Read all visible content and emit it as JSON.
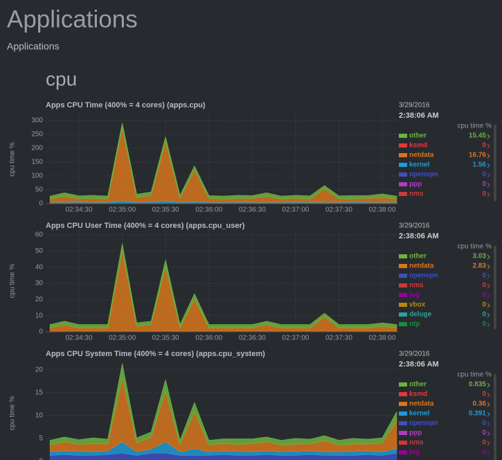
{
  "header": {
    "title": "Applications",
    "subtitle": "Applications",
    "section": "cpu"
  },
  "chart_data": [
    {
      "type": "area",
      "stacked": true,
      "title": "Apps CPU Time (400% = 4 cores) (apps.cpu)",
      "ylabel": "cpu time %",
      "legend_date": "3/29/2016",
      "legend_time": "2:38:06 AM",
      "legend_title": "cpu time %",
      "x": [
        "02:34:10",
        "02:34:20",
        "02:34:30",
        "02:34:40",
        "02:34:50",
        "02:35:00",
        "02:35:10",
        "02:35:20",
        "02:35:30",
        "02:35:40",
        "02:35:50",
        "02:36:00",
        "02:36:10",
        "02:36:20",
        "02:36:30",
        "02:36:40",
        "02:36:50",
        "02:37:00",
        "02:37:10",
        "02:37:20",
        "02:37:30",
        "02:37:40",
        "02:37:50",
        "02:38:00",
        "02:38:10"
      ],
      "xlim": [
        "02:34:07",
        "02:38:11"
      ],
      "xticks": [
        "02:34:30",
        "02:35:00",
        "02:35:30",
        "02:36:00",
        "02:36:30",
        "02:37:00",
        "02:37:30",
        "02:38:00"
      ],
      "ylim": [
        0,
        320
      ],
      "yticks": [
        0,
        50,
        100,
        150,
        200,
        250,
        300
      ],
      "grid": true,
      "series": [
        {
          "name": "other",
          "color": "#6db33f",
          "current": 15.45,
          "values": [
            10,
            12,
            10,
            11,
            10,
            18,
            11,
            12,
            16,
            10,
            14,
            10,
            10,
            11,
            10,
            12,
            10,
            10,
            11,
            12,
            10,
            11,
            10,
            12,
            10
          ]
        },
        {
          "name": "ksmd",
          "color": "#e53935",
          "current": 0,
          "values": [
            0,
            0,
            0,
            0,
            0,
            0,
            0,
            0,
            0,
            0,
            0,
            0,
            0,
            0,
            0,
            0,
            0,
            0,
            0,
            0,
            0,
            0,
            0,
            0,
            0
          ]
        },
        {
          "name": "netdata",
          "color": "#d8761e",
          "current": 16.76,
          "values": [
            12,
            22,
            12,
            14,
            12,
            262,
            18,
            24,
            215,
            15,
            115,
            14,
            12,
            13,
            14,
            22,
            12,
            14,
            12,
            48,
            13,
            12,
            14,
            18,
            12
          ]
        },
        {
          "name": "kernel",
          "color": "#1e9ad6",
          "current": 1.56,
          "values": [
            3,
            3,
            4,
            3,
            3,
            8,
            3,
            4,
            7,
            3,
            5,
            3,
            3,
            4,
            3,
            3,
            3,
            4,
            3,
            3,
            3,
            4,
            3,
            3,
            3
          ]
        },
        {
          "name": "openvpn",
          "color": "#3f4fc0",
          "current": 0,
          "values": [
            1,
            1,
            1,
            1,
            1,
            2,
            1,
            1,
            2,
            1,
            1,
            1,
            1,
            1,
            1,
            1,
            1,
            1,
            1,
            1,
            1,
            1,
            1,
            1,
            1
          ]
        },
        {
          "name": "ppp",
          "color": "#b03cc0",
          "current": 0,
          "values": [
            0,
            0,
            0,
            0,
            0,
            0,
            0,
            0,
            0,
            0,
            0,
            0,
            0,
            0,
            0,
            0,
            0,
            0,
            0,
            0,
            0,
            0,
            0,
            0,
            0
          ]
        },
        {
          "name": "nms",
          "color": "#cc3a3a",
          "current": 0,
          "values": [
            1,
            1,
            1,
            1,
            1,
            1,
            1,
            1,
            1,
            1,
            1,
            1,
            1,
            1,
            1,
            1,
            1,
            1,
            1,
            1,
            1,
            1,
            1,
            1,
            1
          ]
        }
      ]
    },
    {
      "type": "area",
      "stacked": true,
      "title": "Apps CPU User Time (400% = 4 cores) (apps.cpu_user)",
      "ylabel": "cpu time %",
      "legend_date": "3/29/2016",
      "legend_time": "2:38:06 AM",
      "legend_title": "cpu time %",
      "x": [
        "02:34:10",
        "02:34:20",
        "02:34:30",
        "02:34:40",
        "02:34:50",
        "02:35:00",
        "02:35:10",
        "02:35:20",
        "02:35:30",
        "02:35:40",
        "02:35:50",
        "02:36:00",
        "02:36:10",
        "02:36:20",
        "02:36:30",
        "02:36:40",
        "02:36:50",
        "02:37:00",
        "02:37:10",
        "02:37:20",
        "02:37:30",
        "02:37:40",
        "02:37:50",
        "02:38:00",
        "02:38:10"
      ],
      "xlim": [
        "02:34:07",
        "02:38:11"
      ],
      "xticks": [
        "02:34:30",
        "02:35:00",
        "02:35:30",
        "02:36:00",
        "02:36:30",
        "02:37:00",
        "02:37:30",
        "02:38:00"
      ],
      "ylim": [
        0,
        63
      ],
      "yticks": [
        0,
        10,
        20,
        30,
        40,
        50,
        60
      ],
      "grid": true,
      "series": [
        {
          "name": "other",
          "color": "#6db33f",
          "current": 3.03,
          "values": [
            2,
            2,
            2,
            2,
            2,
            4,
            2,
            2,
            4,
            2,
            3,
            2,
            2,
            2,
            2,
            2,
            2,
            2,
            2,
            2,
            2,
            2,
            2,
            2,
            2
          ]
        },
        {
          "name": "netdata",
          "color": "#d8761e",
          "current": 2.83,
          "values": [
            2,
            4,
            2,
            2,
            2,
            50,
            3,
            4,
            40,
            2,
            20,
            2,
            2,
            2,
            2,
            4,
            2,
            2,
            2,
            9,
            2,
            2,
            2,
            3,
            2
          ]
        },
        {
          "name": "openvpn",
          "color": "#3f4fc0",
          "current": 0,
          "values": [
            0.5,
            0.5,
            0.5,
            0.5,
            0.5,
            0.5,
            0.5,
            0.5,
            0.5,
            0.5,
            0.5,
            0.5,
            0.5,
            0.5,
            0.5,
            0.5,
            0.5,
            0.5,
            0.5,
            0.5,
            0.5,
            0.5,
            0.5,
            0.5,
            0.5
          ]
        },
        {
          "name": "nms",
          "color": "#cc3a3a",
          "current": 0,
          "values": [
            0,
            0,
            0,
            0,
            0,
            0,
            0,
            0,
            0,
            0,
            0,
            0,
            0,
            0,
            0,
            0,
            0,
            0,
            0,
            0,
            0,
            0,
            0,
            0,
            0
          ]
        },
        {
          "name": "log",
          "color": "#990099",
          "current": 0,
          "values": [
            0,
            0,
            0,
            0,
            0,
            0,
            0,
            0,
            0,
            0,
            0,
            0,
            0,
            0,
            0,
            0,
            0,
            0,
            0,
            0,
            0,
            0,
            0,
            0,
            0
          ]
        },
        {
          "name": "vbox",
          "color": "#b8860b",
          "current": 0,
          "values": [
            0,
            0,
            0,
            0,
            0,
            0,
            0,
            0,
            0,
            0,
            0,
            0,
            0,
            0,
            0,
            0,
            0,
            0,
            0,
            0,
            0,
            0,
            0,
            0,
            0
          ]
        },
        {
          "name": "deluge",
          "color": "#2aa198",
          "current": 0,
          "values": [
            0,
            0,
            0,
            0,
            0,
            0,
            0,
            0,
            0,
            0,
            0,
            0,
            0,
            0,
            0,
            0,
            0,
            0,
            0,
            0,
            0,
            0,
            0,
            0,
            0
          ]
        },
        {
          "name": "ntp",
          "color": "#1b8a3a",
          "current": 0,
          "values": [
            0,
            0,
            0,
            0,
            0,
            0,
            0,
            0,
            0,
            0,
            0,
            0,
            0,
            0,
            0,
            0,
            0,
            0,
            0,
            0,
            0,
            0,
            0,
            0,
            0
          ]
        }
      ]
    },
    {
      "type": "area",
      "stacked": true,
      "title": "Apps CPU System Time (400% = 4 cores) (apps.cpu_system)",
      "ylabel": "cpu time %",
      "legend_date": "3/29/2016",
      "legend_time": "2:38:06 AM",
      "legend_title": "cpu time %",
      "x": [
        "02:34:10",
        "02:34:20",
        "02:34:30",
        "02:34:40",
        "02:34:50",
        "02:35:00",
        "02:35:10",
        "02:35:20",
        "02:35:30",
        "02:35:40",
        "02:35:50",
        "02:36:00",
        "02:36:10",
        "02:36:20",
        "02:36:30",
        "02:36:40",
        "02:36:50",
        "02:37:00",
        "02:37:10",
        "02:37:20",
        "02:37:30",
        "02:37:40",
        "02:37:50",
        "02:38:00",
        "02:38:10"
      ],
      "xlim": [
        "02:34:07",
        "02:38:11"
      ],
      "ylim": [
        0,
        21
      ],
      "yticks": [
        0,
        5,
        10,
        15,
        20
      ],
      "grid": true,
      "series": [
        {
          "name": "other",
          "color": "#6db33f",
          "current": 0.835,
          "values": [
            1,
            1,
            1,
            1.2,
            1,
            3,
            1,
            1.2,
            2.5,
            1,
            2,
            1,
            1,
            1.2,
            1,
            1,
            1,
            1.2,
            1,
            1,
            1,
            1.2,
            1,
            1,
            2
          ]
        },
        {
          "name": "ksmd",
          "color": "#e53935",
          "current": 0,
          "values": [
            0,
            0,
            0,
            0,
            0,
            0,
            0,
            0,
            0,
            0,
            0,
            0,
            0,
            0,
            0,
            0,
            0,
            0,
            0,
            0,
            0,
            0,
            0,
            0,
            0
          ]
        },
        {
          "name": "netdata",
          "color": "#d8761e",
          "current": 0.36,
          "values": [
            1.5,
            2,
            1.5,
            1.8,
            1.5,
            14,
            2,
            2.5,
            11,
            1.5,
            8,
            1.5,
            1.6,
            1.5,
            1.8,
            2,
            1.5,
            1.6,
            1.5,
            2.5,
            1.5,
            1.6,
            1.5,
            2,
            6
          ]
        },
        {
          "name": "kernel",
          "color": "#1e9ad6",
          "current": 0.391,
          "values": [
            0.8,
            0.8,
            0.9,
            0.8,
            0.8,
            2.5,
            0.8,
            0.9,
            2.5,
            0.8,
            1.5,
            0.8,
            0.8,
            0.9,
            0.8,
            0.8,
            0.8,
            0.9,
            0.8,
            0.8,
            0.8,
            0.9,
            0.8,
            0.8,
            1
          ]
        },
        {
          "name": "openvpn",
          "color": "#3f4fc0",
          "current": 0,
          "values": [
            1,
            1.2,
            1,
            1,
            1.2,
            1.5,
            1,
            1.5,
            1.5,
            1,
            1,
            1,
            1.2,
            1,
            1,
            1.2,
            1,
            1,
            1.2,
            1,
            1,
            1,
            1.2,
            1,
            1.5
          ]
        },
        {
          "name": "ppp",
          "color": "#b03cc0",
          "current": 0,
          "values": [
            0,
            0,
            0,
            0,
            0,
            0,
            0,
            0,
            0,
            0,
            0,
            0,
            0,
            0,
            0,
            0,
            0,
            0,
            0,
            0,
            0,
            0,
            0,
            0,
            0
          ]
        },
        {
          "name": "nms",
          "color": "#cc3a3a",
          "current": 0,
          "values": [
            0.3,
            0.3,
            0.3,
            0.3,
            0.3,
            0.3,
            0.3,
            0.3,
            0.3,
            0.3,
            0.3,
            0.3,
            0.3,
            0.3,
            0.3,
            0.3,
            0.3,
            0.3,
            0.3,
            0.3,
            0.3,
            0.3,
            0.3,
            0.3,
            0.3
          ]
        },
        {
          "name": "log",
          "color": "#990099",
          "current": 0,
          "values": [
            0,
            0,
            0,
            0,
            0,
            0,
            0,
            0,
            0,
            0,
            0,
            0,
            0,
            0,
            0,
            0,
            0,
            0,
            0,
            0,
            0,
            0,
            0,
            0,
            0
          ]
        }
      ]
    }
  ]
}
